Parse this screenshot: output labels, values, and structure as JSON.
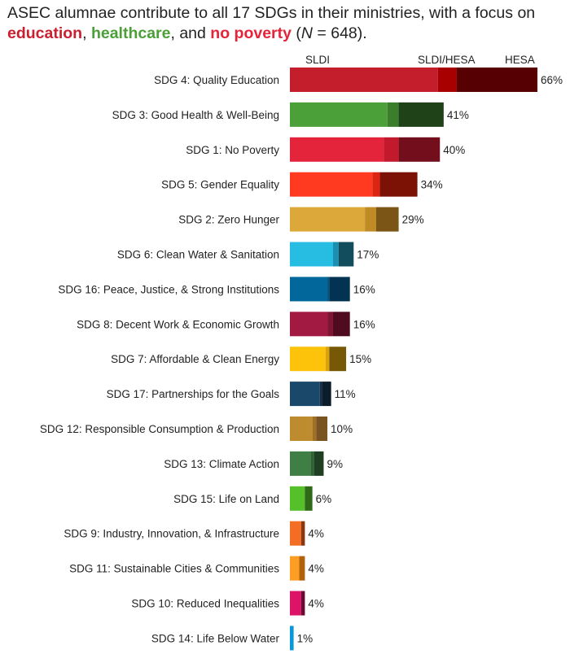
{
  "chart_data": {
    "type": "bar",
    "orientation": "horizontal",
    "stacked": true,
    "title": {
      "part1": "ASEC alumnae contribute to all 17 SDGs in their ministries, with a focus on ",
      "hl1": "education",
      "sep1": ", ",
      "hl2": "healthcare",
      "sep2": ", and ",
      "hl3": "no poverty",
      "part2": " (",
      "n_symbol": "N",
      "part3": " = 648).",
      "hl_colors": [
        "#c8202f",
        "#4c9f38",
        "#e5243b"
      ]
    },
    "legend": [
      "SLDI",
      "SLDI/HESA",
      "HESA"
    ],
    "legend_placement": "top",
    "xlim": [
      0,
      66
    ],
    "grid": false,
    "unit": "%",
    "categories": [
      "SDG 4: Quality Education",
      "SDG 3: Good Health & Well-Being",
      "SDG 1: No Poverty",
      "SDG 5: Gender Equality",
      "SDG 2: Zero Hunger",
      "SDG 6: Clean Water & Sanitation",
      "SDG 16: Peace, Justice, & Strong Institutions",
      "SDG 8: Decent Work & Economic Growth",
      "SDG 7: Affordable & Clean Energy",
      "SDG 17: Partnerships for the Goals",
      "SDG 12: Responsible Consumption & Production",
      "SDG 13: Climate Action",
      "SDG 15: Life on Land",
      "SDG 9: Industry, Innovation, & Infrastructure",
      "SDG 11: Sustainable Cities & Communities",
      "SDG 10: Reduced Inequalities",
      "SDG 14: Life Below Water"
    ],
    "totals": [
      66,
      41,
      40,
      34,
      29,
      17,
      16,
      16,
      15,
      11,
      10,
      9,
      6,
      4,
      4,
      4,
      1
    ],
    "series": [
      {
        "name": "SLDI",
        "values": [
          39.5,
          26,
          25,
          22,
          20,
          11.5,
          10,
          10,
          9.5,
          8,
          6,
          5.5,
          4,
          3,
          2.5,
          3,
          1
        ]
      },
      {
        "name": "SLDI/HESA",
        "values": [
          5,
          3,
          4,
          2,
          3,
          1.5,
          0.5,
          1.5,
          1,
          0.5,
          1,
          1,
          0,
          0,
          0,
          0,
          0
        ]
      },
      {
        "name": "HESA",
        "values": [
          21.5,
          12,
          11,
          10,
          6,
          4,
          5.5,
          4.5,
          4.5,
          2.5,
          3,
          2.5,
          2,
          1,
          1.5,
          1,
          0
        ]
      }
    ],
    "colors": [
      [
        "#c41e2d",
        "#a80000",
        "#560003"
      ],
      [
        "#4ca03a",
        "#3a7e2c",
        "#1f4219"
      ],
      [
        "#e4243b",
        "#c21a2c",
        "#730f1c"
      ],
      [
        "#ff3a21",
        "#dd2410",
        "#7c1206"
      ],
      [
        "#dda83a",
        "#c08a24",
        "#7b5516"
      ],
      [
        "#27bde2",
        "#1b8fb0",
        "#124d5e"
      ],
      [
        "#02689c",
        "#02527c",
        "#023352"
      ],
      [
        "#a21942",
        "#801533",
        "#4f0c20"
      ],
      [
        "#fdc30b",
        "#dba20a",
        "#765807"
      ],
      [
        "#19486a",
        "#132f48",
        "#0b1c2a"
      ],
      [
        "#be8b2e",
        "#a07024",
        "#7a5420"
      ],
      [
        "#3f7e44",
        "#2f6234",
        "#1f3f22"
      ],
      [
        "#56c02b",
        "#3f8f20",
        "#2e6a17"
      ],
      [
        "#f36d25",
        "#c8541a",
        "#8a3710"
      ],
      [
        "#fd9d24",
        "#e07f10",
        "#b0620a"
      ],
      [
        "#dd1367",
        "#b00f52",
        "#6a0a32"
      ],
      [
        "#0a97d9",
        "#0a7ab0",
        "#055580"
      ]
    ]
  }
}
